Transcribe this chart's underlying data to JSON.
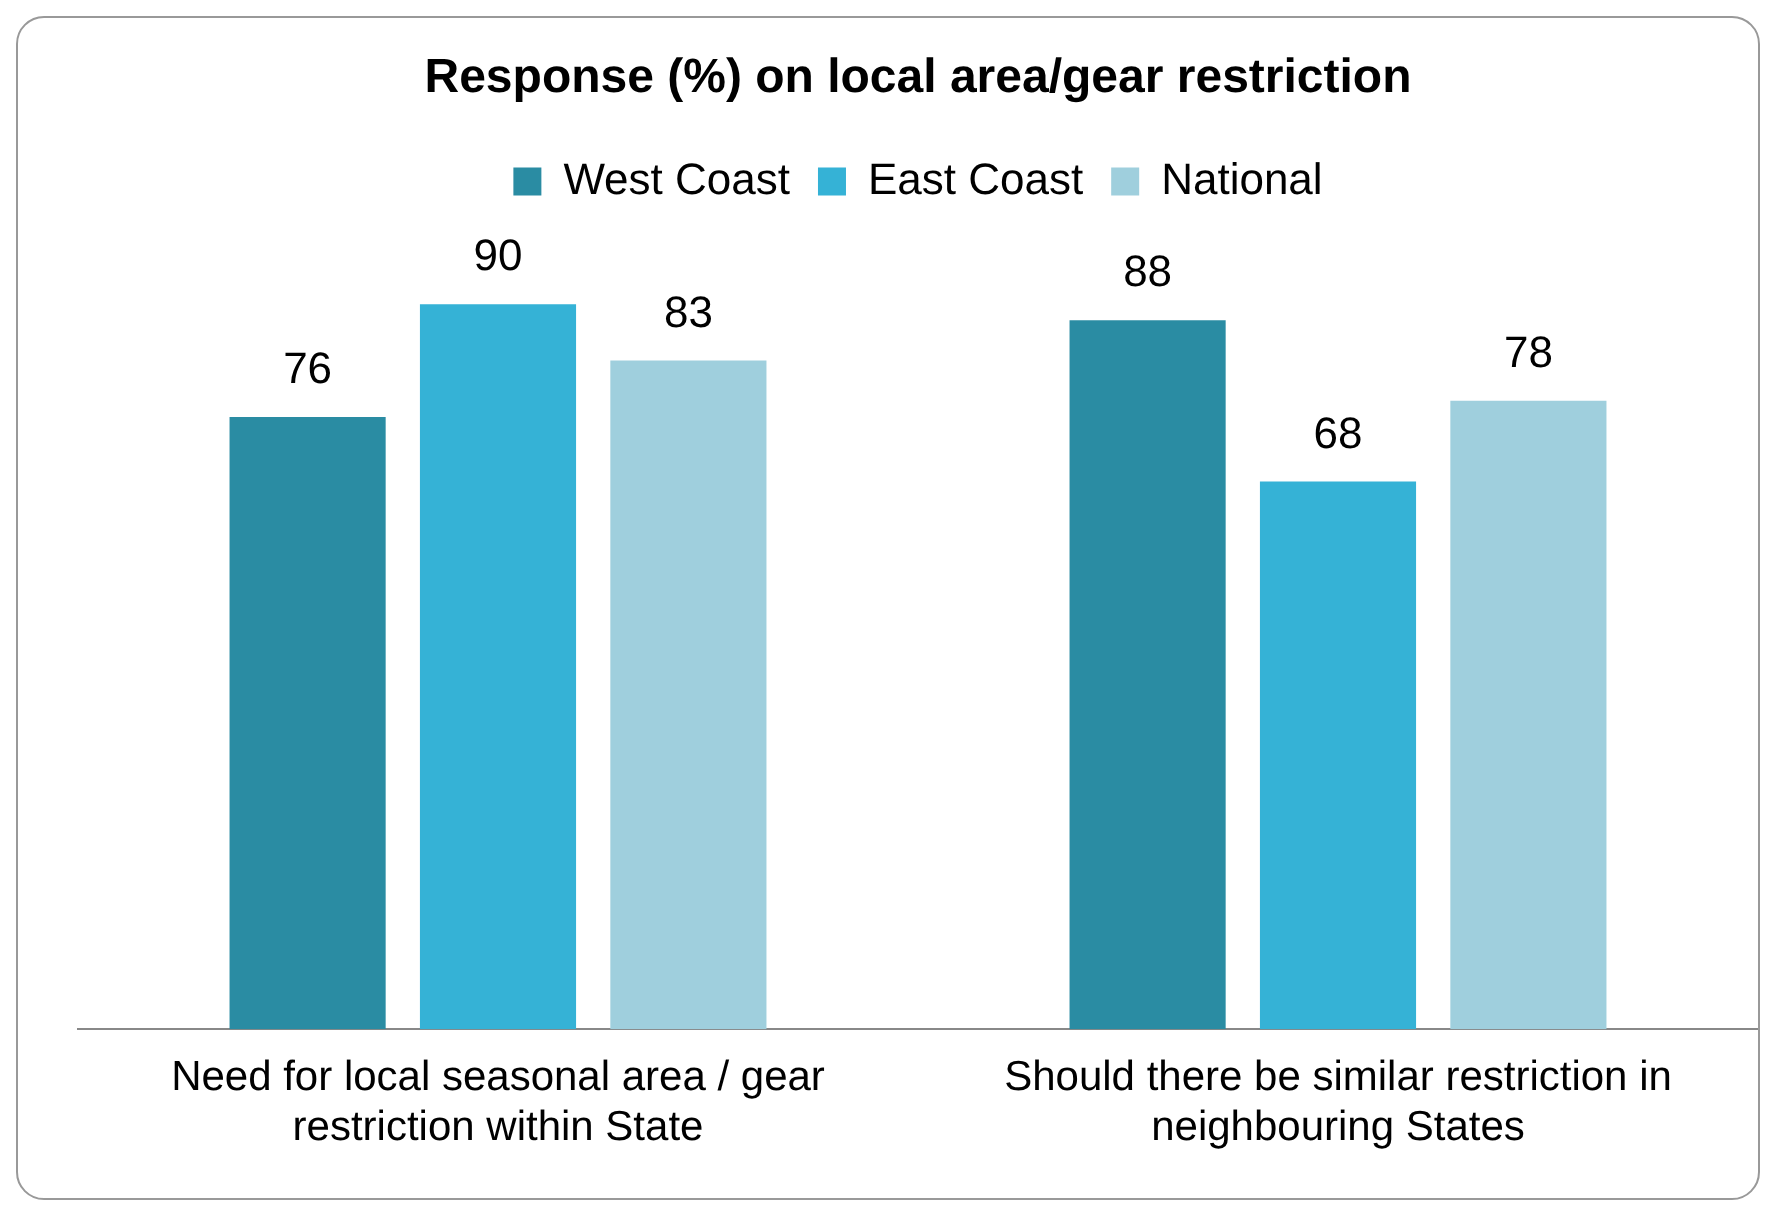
{
  "chart_data": {
    "type": "bar",
    "title": "Response (%) on local area/gear restriction",
    "categories": [
      "Need for local seasonal area / gear restriction within State",
      "Should there be similar restriction in neighbouring States"
    ],
    "series": [
      {
        "name": "West Coast",
        "color": "#2a8ca3",
        "values": [
          76,
          88
        ]
      },
      {
        "name": "East Coast",
        "color": "#35b2d6",
        "values": [
          90,
          68
        ]
      },
      {
        "name": "National",
        "color": "#9fcfdd",
        "values": [
          83,
          78
        ]
      }
    ],
    "data_labels": true,
    "legend": "top",
    "grid": false,
    "tick_labels": "x"
  }
}
